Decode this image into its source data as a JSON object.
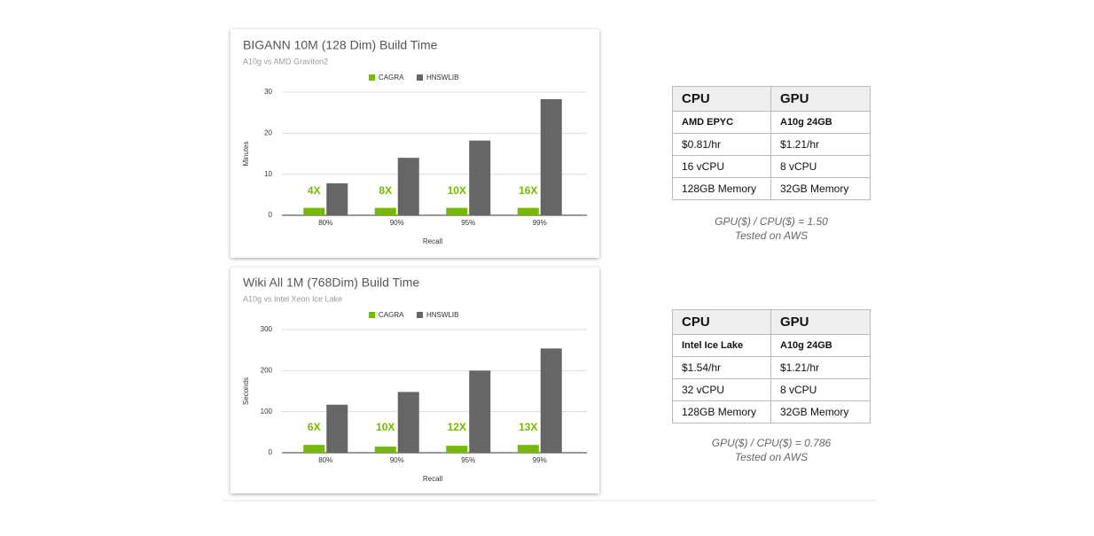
{
  "chart_data": [
    {
      "type": "bar",
      "title": "BIGANN 10M (128 Dim) Build Time",
      "subtitle": "A10g vs AMD Graviton2",
      "x_label": "Recall",
      "y_label": "Minutes",
      "categories": [
        "80%",
        "90%",
        "95%",
        "99%"
      ],
      "series": [
        {
          "name": "CAGRA",
          "color": "#76b900",
          "values": [
            1.8,
            1.8,
            1.8,
            1.8
          ]
        },
        {
          "name": "HNSWLIB",
          "color": "#666666",
          "values": [
            7.8,
            14,
            18.2,
            28.3
          ]
        }
      ],
      "annotations": [
        "4X",
        "8X",
        "10X",
        "16X"
      ],
      "ylim": [
        0,
        30
      ],
      "yticks": [
        0,
        10,
        20,
        30
      ],
      "grid": true
    },
    {
      "type": "bar",
      "title": "Wiki All 1M (768Dim) Build Time",
      "subtitle": "A10g vs Intel Xeon Ice Lake",
      "x_label": "Recall",
      "y_label": "Seconds",
      "categories": [
        "80%",
        "90%",
        "95%",
        "99%"
      ],
      "series": [
        {
          "name": "CAGRA",
          "color": "#76b900",
          "values": [
            19,
            15,
            17,
            19
          ]
        },
        {
          "name": "HNSWLIB",
          "color": "#666666",
          "values": [
            117,
            148,
            200,
            254
          ]
        }
      ],
      "annotations": [
        "6X",
        "10X",
        "12X",
        "13X"
      ],
      "ylim": [
        0,
        300
      ],
      "yticks": [
        0,
        100,
        200,
        300
      ],
      "grid": true
    }
  ],
  "tables": [
    {
      "header": [
        "CPU",
        "GPU"
      ],
      "rows": [
        [
          "AMD EPYC",
          "A10g 24GB"
        ],
        [
          "$0.81/hr",
          "$1.21/hr"
        ],
        [
          "16 vCPU",
          "8 vCPU"
        ],
        [
          "128GB Memory",
          "32GB Memory"
        ]
      ],
      "notes": [
        "GPU($) / CPU($) = 1.50",
        "Tested on AWS"
      ]
    },
    {
      "header": [
        "CPU",
        "GPU"
      ],
      "rows": [
        [
          "Intel Ice Lake",
          "A10g 24GB"
        ],
        [
          "$1.54/hr",
          "$1.21/hr"
        ],
        [
          "32 vCPU",
          "8 vCPU"
        ],
        [
          "128GB Memory",
          "32GB Memory"
        ]
      ],
      "notes": [
        "GPU($) / CPU($) = 0.786",
        "Tested on AWS"
      ]
    }
  ]
}
